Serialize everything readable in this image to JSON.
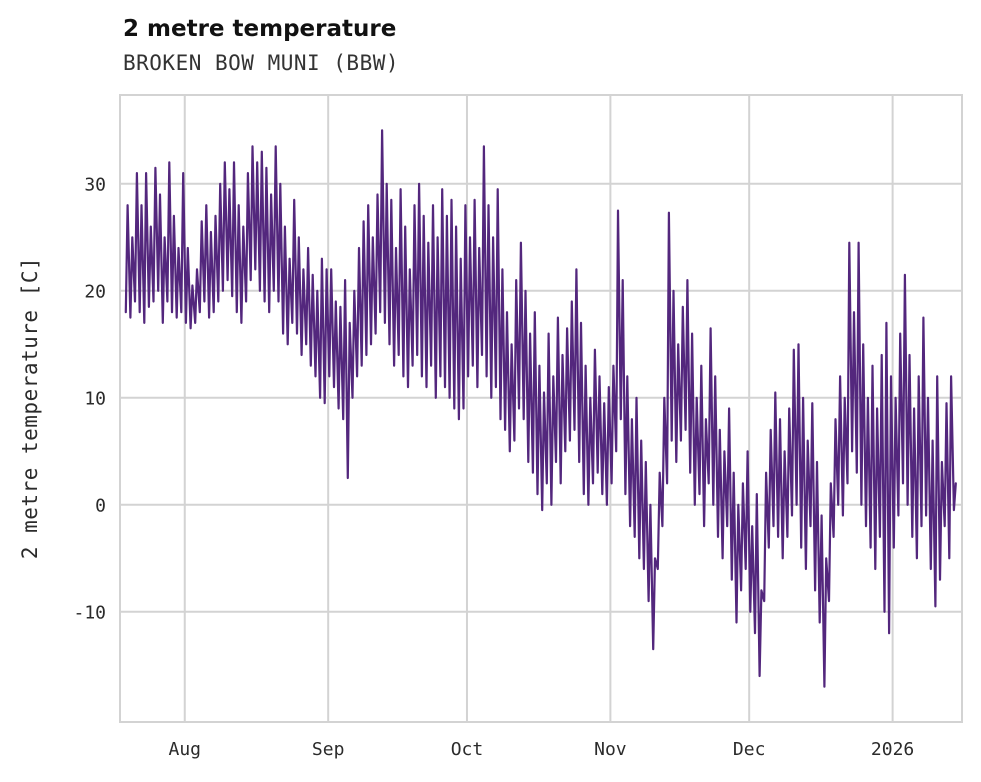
{
  "chart": {
    "title": "2 metre temperature",
    "subtitle": "BROKEN BOW MUNI (BBW)",
    "ylabel": "2 metre temperature [C]",
    "line_color": "#53277d",
    "grid_color": "#d3d3d3",
    "text_color": "#2b2b2b"
  },
  "chart_data": {
    "type": "line",
    "title": "2 metre temperature",
    "subtitle": "BROKEN BOW MUNI (BBW)",
    "ylabel": "2 metre temperature [C]",
    "xlabel": "",
    "legend": "none",
    "grid": true,
    "x_unit": "day_index",
    "points_per_day": [
      "daily_low",
      "daily_high"
    ],
    "x_ticks": [
      {
        "label": "Aug",
        "day": 13
      },
      {
        "label": "Sep",
        "day": 44
      },
      {
        "label": "Oct",
        "day": 74
      },
      {
        "label": "Nov",
        "day": 105
      },
      {
        "label": "Dec",
        "day": 135
      },
      {
        "label": "2026",
        "day": 166
      }
    ],
    "y_ticks": [
      -10,
      0,
      10,
      20,
      30
    ],
    "xlim": [
      -1,
      181
    ],
    "ylim": [
      -20.3,
      38.3
    ],
    "daily_highs": [
      28,
      25,
      31,
      28,
      31,
      26,
      31.5,
      29,
      25,
      32,
      27,
      24,
      31,
      24,
      20.5,
      22,
      26.5,
      28,
      25.5,
      27,
      30,
      32,
      29.5,
      32,
      28,
      26,
      31,
      33.5,
      32,
      33,
      31.5,
      29,
      33.5,
      30,
      26,
      23,
      28.5,
      25,
      22,
      24,
      21.5,
      20,
      23,
      22,
      22,
      19,
      18.5,
      21,
      17,
      20,
      24,
      26.5,
      28,
      25,
      29,
      35,
      30,
      28.5,
      24,
      29.5,
      26,
      22,
      28,
      30,
      27,
      24.5,
      28,
      25,
      29.5,
      27,
      28.5,
      26,
      23,
      28,
      25,
      28.5,
      24,
      33.5,
      28,
      25,
      29.5,
      22,
      18,
      15,
      21,
      24.5,
      20,
      16,
      18,
      13,
      10.5,
      16,
      12,
      17.5,
      14,
      16.5,
      19,
      22,
      17,
      13,
      10,
      14.5,
      12,
      9.5,
      11,
      13,
      27.5,
      21,
      12,
      8,
      10,
      6,
      4,
      0,
      -5,
      3,
      10,
      27.3,
      20,
      15,
      18.5,
      21,
      16,
      10,
      13,
      8,
      16.5,
      12,
      7,
      5,
      9,
      3,
      0,
      2,
      5,
      -2,
      1,
      -8,
      3,
      7,
      10.5,
      8,
      5,
      9,
      14.5,
      15,
      10,
      6,
      9.5,
      4,
      -1,
      -5,
      2,
      8,
      12,
      10,
      24.5,
      18,
      24.5,
      15,
      10,
      13,
      9,
      14,
      17,
      12,
      10,
      16,
      21.5,
      14,
      9,
      12,
      17.5,
      10,
      6,
      12,
      4,
      9.5,
      12,
      2
    ],
    "daily_lows": [
      18,
      17.5,
      19,
      18,
      17,
      18.5,
      19,
      20,
      17,
      19,
      18,
      17.5,
      18,
      17,
      16.5,
      17,
      18,
      19,
      17.5,
      18,
      19,
      20,
      21,
      19.5,
      18,
      17,
      19,
      21,
      22,
      20,
      19,
      18,
      20,
      19,
      16,
      15,
      17,
      16,
      14,
      15,
      13,
      12,
      10,
      9.5,
      12,
      11,
      9,
      8,
      2.5,
      10,
      12,
      13,
      14,
      15,
      16,
      18,
      17,
      15,
      13,
      14,
      12,
      11,
      13,
      14,
      12,
      11,
      13,
      10,
      12,
      11,
      10,
      9,
      8,
      9,
      12,
      13,
      11,
      14,
      12,
      10,
      11,
      8,
      7,
      5,
      6,
      9,
      8,
      4,
      3,
      1,
      -0.5,
      2,
      0,
      4,
      2,
      5,
      6,
      7,
      4,
      1,
      0,
      2,
      3,
      1,
      0,
      2,
      5,
      8,
      1,
      -2,
      -3,
      -5,
      -6,
      -9,
      -13.5,
      -6,
      -2,
      2,
      6,
      4,
      6,
      7,
      3,
      0,
      1,
      -2,
      2,
      0,
      -3,
      -5,
      -2,
      -7,
      -11,
      -8,
      -6,
      -10,
      -12,
      -16,
      -9,
      -4,
      -2,
      -3,
      -5,
      -3,
      -1,
      0,
      -4,
      -6,
      -2,
      -8,
      -11,
      -17,
      -9,
      -3,
      0,
      -1,
      2,
      5,
      3,
      0,
      -2,
      -4,
      -6,
      -3,
      -10,
      -12,
      -4,
      -1,
      2,
      0,
      -3,
      -5,
      -2,
      -1,
      -6,
      -9.5,
      -7,
      -2,
      -5,
      -0.5
    ]
  }
}
